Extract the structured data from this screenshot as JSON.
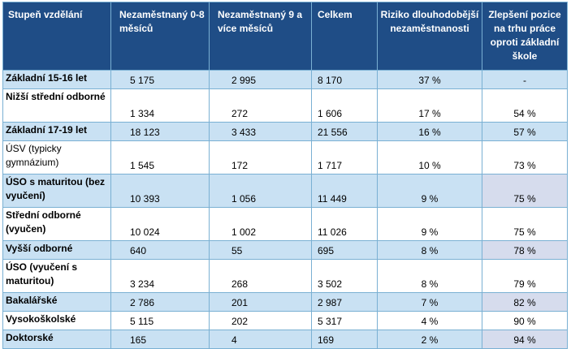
{
  "headers": [
    "Stupeň vzdělání",
    "Nezaměstnaný 0-8 měsíců",
    "Nezaměstnaný 9 a více měsíců",
    "Celkem",
    "Riziko dlouhodobější nezaměstnanosti",
    "Zlepšení pozice na trhu práce oproti základní škole"
  ],
  "rows": [
    {
      "label": "Základní 15-16 let",
      "u08": "5 175",
      "u9": "2 995",
      "total": "8 170",
      "risk": "37 %",
      "improve": "-"
    },
    {
      "label": "Nižší střední odborné",
      "u08": "1 334",
      "u9": "272",
      "total": "1 606",
      "risk": "17 %",
      "improve": "54 %"
    },
    {
      "label": "Základní 17-19 let",
      "u08": "18 123",
      "u9": "3 433",
      "total": "21 556",
      "risk": "16 %",
      "improve": "57 %"
    },
    {
      "label": "ÚSV (typicky gymnázium)",
      "u08": "1 545",
      "u9": "172",
      "total": "1 717",
      "risk": "10 %",
      "improve": "73 %"
    },
    {
      "label": "ÚSO s maturitou (bez vyučení)",
      "u08": "10 393",
      "u9": "1 056",
      "total": "11 449",
      "risk": "9 %",
      "improve": "75 %"
    },
    {
      "label": "Střední odborné (vyučen)",
      "u08": "10 024",
      "u9": "1 002",
      "total": "11 026",
      "risk": "9 %",
      "improve": "75 %"
    },
    {
      "label": "Vyšší odborné",
      "u08": "640",
      "u9": "55",
      "total": "695",
      "risk": "8 %",
      "improve": "78 %"
    },
    {
      "label": "ÚSO (vyučení s maturitou)",
      "u08": "3 234",
      "u9": "268",
      "total": "3 502",
      "risk": "8 %",
      "improve": "79 %"
    },
    {
      "label": "Bakalářské",
      "u08": "2 786",
      "u9": "201",
      "total": "2 987",
      "risk": "7 %",
      "improve": "82 %"
    },
    {
      "label": "Vysokoškolské",
      "u08": "5 115",
      "u9": "202",
      "total": "5 317",
      "risk": "4 %",
      "improve": "90 %"
    },
    {
      "label": "Doktorské",
      "u08": "165",
      "u9": "4",
      "total": "169",
      "risk": "2 %",
      "improve": "94 %"
    }
  ]
}
